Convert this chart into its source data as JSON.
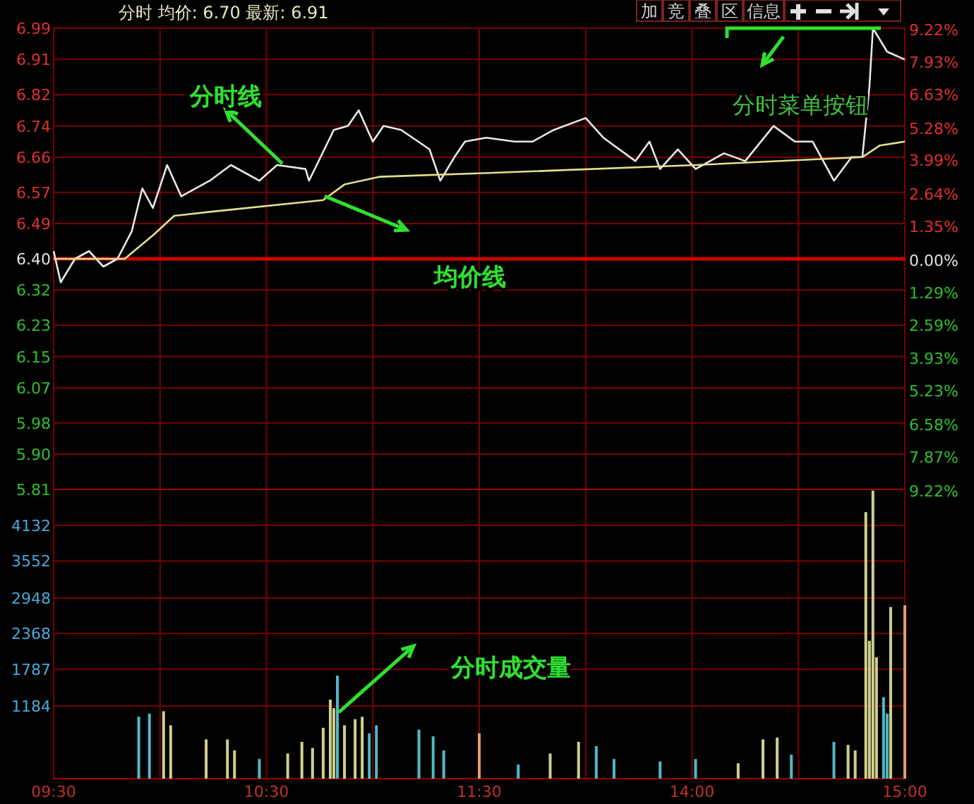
{
  "chart_data": [
    {
      "type": "line",
      "title": "分时 均价: 6.70 最新: 6.91",
      "categories": [
        null,
        null,
        null,
        null,
        null,
        null,
        null,
        null,
        null,
        null,
        null,
        null,
        null,
        null,
        null,
        null,
        null,
        null,
        null,
        null,
        null,
        null,
        null,
        null,
        null,
        null,
        null,
        null,
        null,
        null,
        null,
        null,
        null,
        null,
        null,
        null,
        null,
        null,
        null,
        null,
        null,
        null,
        null,
        null,
        null,
        null,
        null,
        null,
        null,
        null,
        null,
        null,
        null,
        null,
        null,
        null,
        null,
        null,
        null,
        null,
        null,
        null,
        null,
        null,
        null,
        null,
        null,
        null,
        null,
        null,
        null,
        null,
        null,
        null,
        null,
        null,
        null,
        null,
        null,
        null,
        null,
        null,
        null,
        null,
        null,
        null,
        null,
        null,
        null,
        null,
        null,
        null,
        null,
        null,
        null,
        null,
        null,
        null,
        null,
        null,
        null,
        null,
        null,
        null,
        null,
        null,
        null,
        null,
        null,
        null,
        null,
        null,
        null,
        null,
        null,
        null,
        null,
        null,
        null,
        null,
        null,
        null,
        null,
        null,
        null,
        null,
        null,
        null,
        null,
        null,
        null,
        null,
        null,
        null,
        null,
        null,
        null,
        null,
        null,
        null,
        null,
        null,
        null,
        null,
        null,
        null,
        null,
        null,
        null,
        null,
        null,
        null,
        null,
        null,
        null,
        null,
        null,
        null,
        null,
        null,
        null,
        null,
        null,
        null,
        null,
        null,
        null,
        null,
        null,
        null,
        null,
        null,
        null,
        null,
        null,
        null,
        null,
        null,
        null,
        null,
        null,
        null,
        null,
        null,
        null,
        null,
        null,
        null,
        null,
        null,
        null,
        null,
        null,
        null,
        null,
        null,
        null,
        null,
        null,
        null,
        null,
        null,
        null,
        null,
        null,
        null,
        null,
        null,
        null,
        null,
        null,
        null,
        null,
        null,
        null,
        null,
        null,
        null,
        null,
        null,
        null,
        null,
        null,
        null,
        null,
        null,
        null,
        null,
        null,
        null,
        null,
        null,
        null,
        null,
        null,
        null,
        null,
        null,
        null,
        null,
        null
      ],
      "series": [
        {
          "color": "#e8e8e8",
          "values": [
            6.42,
            null,
            6.34,
            null,
            null,
            null,
            6.4,
            null,
            null,
            null,
            6.42,
            null,
            null,
            null,
            6.38,
            null,
            null,
            null,
            6.4,
            null,
            null,
            null,
            6.47,
            null,
            null,
            6.58,
            null,
            null,
            6.53,
            null,
            null,
            null,
            6.64,
            null,
            null,
            null,
            6.56,
            null,
            null,
            null,
            null,
            null,
            null,
            null,
            6.6,
            null,
            null,
            null,
            null,
            null,
            6.64,
            null,
            null,
            null,
            null,
            null,
            null,
            null,
            6.6,
            null,
            null,
            null,
            null,
            6.64,
            null,
            null,
            null,
            null,
            null,
            null,
            null,
            6.63,
            6.6,
            null,
            null,
            null,
            null,
            null,
            null,
            6.73,
            null,
            null,
            null,
            6.74,
            null,
            null,
            6.78,
            null,
            null,
            null,
            6.7,
            null,
            null,
            6.74,
            null,
            null,
            null,
            null,
            6.73,
            null,
            null,
            null,
            null,
            null,
            null,
            null,
            6.68,
            null,
            null,
            6.6,
            null,
            null,
            null,
            6.66,
            null,
            null,
            6.7,
            null,
            null,
            null,
            null,
            null,
            6.71,
            null,
            null,
            null,
            null,
            null,
            null,
            null,
            6.7,
            null,
            null,
            null,
            null,
            6.7,
            null,
            null,
            null,
            null,
            null,
            6.73,
            null,
            null,
            null,
            null,
            null,
            null,
            null,
            null,
            6.76,
            null,
            null,
            null,
            null,
            6.71,
            null,
            null,
            null,
            null,
            null,
            null,
            null,
            null,
            6.65,
            null,
            null,
            null,
            6.7,
            null,
            null,
            6.63,
            null,
            null,
            null,
            null,
            6.68,
            null,
            null,
            null,
            null,
            6.63,
            null,
            null,
            null,
            null,
            null,
            null,
            null,
            6.67,
            null,
            null,
            null,
            null,
            null,
            6.65,
            null,
            null,
            null,
            null,
            null,
            null,
            null,
            6.74,
            null,
            null,
            null,
            null,
            null,
            6.7,
            null,
            null,
            null,
            null,
            6.7,
            null,
            null,
            null,
            null,
            null,
            6.6,
            null,
            null,
            null,
            null,
            6.66,
            null,
            null,
            6.66,
            null,
            6.84,
            6.99,
            null,
            null,
            null,
            6.93,
            null,
            null,
            null,
            null,
            6.91
          ]
        },
        {
          "color": "#e0e090",
          "values": [
            6.4,
            null,
            null,
            null,
            null,
            null,
            null,
            null,
            null,
            null,
            null,
            null,
            null,
            null,
            null,
            null,
            null,
            null,
            null,
            null,
            6.4,
            null,
            null,
            null,
            null,
            null,
            null,
            null,
            6.46,
            null,
            null,
            null,
            null,
            null,
            6.51,
            null,
            null,
            null,
            null,
            null,
            null,
            null,
            null,
            null,
            6.52,
            null,
            null,
            null,
            null,
            null,
            null,
            null,
            null,
            null,
            null,
            null,
            null,
            null,
            null,
            null,
            null,
            null,
            null,
            null,
            null,
            null,
            null,
            null,
            null,
            null,
            null,
            null,
            null,
            null,
            null,
            null,
            6.55,
            null,
            null,
            null,
            null,
            null,
            6.59,
            null,
            null,
            null,
            null,
            null,
            null,
            null,
            null,
            null,
            6.61,
            null,
            null,
            null,
            null,
            null,
            null,
            null,
            null,
            null,
            null,
            null,
            null,
            null,
            null,
            null,
            null,
            null,
            null,
            null,
            null,
            null,
            null,
            null,
            null,
            null,
            null,
            null,
            null,
            null,
            null,
            null,
            6.62,
            null,
            null,
            null,
            null,
            null,
            null,
            null,
            null,
            null,
            null,
            null,
            null,
            null,
            null,
            null,
            null,
            null,
            null,
            null,
            null,
            null,
            null,
            null,
            null,
            null,
            null,
            null,
            null,
            null,
            null,
            null,
            null,
            null,
            null,
            null,
            null,
            null,
            null,
            null,
            null,
            null,
            null,
            null,
            null,
            null,
            null,
            null,
            null,
            null,
            null,
            null,
            null,
            null,
            null,
            null,
            null,
            6.64,
            null,
            null,
            null,
            null,
            null,
            null,
            null,
            null,
            null,
            null,
            null,
            null,
            null,
            null,
            null,
            null,
            null,
            null,
            null,
            null,
            null,
            null,
            null,
            null,
            null,
            null,
            null,
            null,
            null,
            null,
            null,
            null,
            null,
            null,
            null,
            null,
            null,
            null,
            null,
            null,
            null,
            null,
            null,
            null,
            null,
            null,
            6.66,
            null,
            null,
            null,
            null,
            6.69,
            null,
            null,
            null,
            null,
            null,
            null,
            6.7
          ]
        }
      ],
      "ylim": [
        5.81,
        6.99
      ],
      "yticks": [
        {
          "value": 6.99,
          "label": "6.99"
        },
        {
          "value": 6.91,
          "label": "6.91"
        },
        {
          "value": 6.82,
          "label": "6.82"
        },
        {
          "value": 6.74,
          "label": "6.74"
        },
        {
          "value": 6.66,
          "label": "6.66"
        },
        {
          "value": 6.57,
          "label": "6.57"
        },
        {
          "value": 6.49,
          "label": "6.49"
        },
        {
          "value": 6.4,
          "label": "6.40"
        },
        {
          "value": 6.32,
          "label": "6.32"
        },
        {
          "value": 6.23,
          "label": "6.23"
        },
        {
          "value": 6.15,
          "label": "6.15"
        },
        {
          "value": 6.07,
          "label": "6.07"
        },
        {
          "value": 5.98,
          "label": "5.98"
        },
        {
          "value": 5.9,
          "label": "5.90"
        },
        {
          "value": 5.81,
          "label": "5.81"
        }
      ],
      "y2lim": [
        -9.22,
        9.22
      ],
      "y2ticks": [
        {
          "value": 9.22,
          "label": "9.22%"
        },
        {
          "value": 7.93,
          "label": "7.93%"
        },
        {
          "value": 6.63,
          "label": "6.63%"
        },
        {
          "value": 5.28,
          "label": "5.28%"
        },
        {
          "value": 3.99,
          "label": "3.99%"
        },
        {
          "value": 2.64,
          "label": "2.64%"
        },
        {
          "value": 1.35,
          "label": "1.35%"
        },
        {
          "value": 0,
          "label": "0.00%"
        },
        {
          "value": -1.29,
          "label": "1.29%"
        },
        {
          "value": -2.59,
          "label": "2.59%"
        },
        {
          "value": -3.93,
          "label": "3.93%"
        },
        {
          "value": -5.23,
          "label": "5.23%"
        },
        {
          "value": -6.58,
          "label": "6.58%"
        },
        {
          "value": -7.87,
          "label": "7.87%"
        },
        {
          "value": -9.22,
          "label": "9.22%"
        }
      ],
      "ref_lines": [
        {
          "axis": "y",
          "value": 6.4,
          "color": "#d00000"
        }
      ],
      "grid": true,
      "tick_labels": "y",
      "annotations": [
        "分时线",
        "均价线",
        "分时菜单按钮",
        "加",
        "竞",
        "叠",
        "区",
        "信息"
      ]
    },
    {
      "type": "bar",
      "categories": [
        "09:30",
        null,
        null,
        null,
        null,
        null,
        null,
        null,
        null,
        null,
        null,
        null,
        null,
        null,
        null,
        null,
        null,
        null,
        null,
        null,
        null,
        null,
        null,
        null,
        null,
        null,
        null,
        null,
        null,
        null,
        null,
        null,
        null,
        null,
        null,
        null,
        null,
        null,
        null,
        null,
        null,
        null,
        null,
        null,
        null,
        null,
        null,
        null,
        null,
        null,
        null,
        null,
        null,
        null,
        null,
        null,
        null,
        null,
        null,
        null,
        "10:30",
        null,
        null,
        null,
        null,
        null,
        null,
        null,
        null,
        null,
        null,
        null,
        null,
        null,
        null,
        null,
        null,
        null,
        null,
        null,
        null,
        null,
        null,
        null,
        null,
        null,
        null,
        null,
        null,
        null,
        null,
        null,
        null,
        null,
        null,
        null,
        null,
        null,
        null,
        null,
        null,
        null,
        null,
        null,
        null,
        null,
        null,
        null,
        null,
        null,
        null,
        null,
        null,
        null,
        null,
        null,
        null,
        null,
        null,
        null,
        "11:30",
        null,
        null,
        null,
        null,
        null,
        null,
        null,
        null,
        null,
        null,
        null,
        null,
        null,
        null,
        null,
        null,
        null,
        null,
        null,
        null,
        null,
        null,
        null,
        null,
        null,
        null,
        null,
        null,
        null,
        null,
        null,
        null,
        null,
        null,
        null,
        null,
        null,
        null,
        null,
        null,
        null,
        null,
        null,
        null,
        null,
        null,
        null,
        null,
        null,
        null,
        null,
        null,
        null,
        null,
        null,
        null,
        null,
        null,
        null,
        "14:00",
        null,
        null,
        null,
        null,
        null,
        null,
        null,
        null,
        null,
        null,
        null,
        null,
        null,
        null,
        null,
        null,
        null,
        null,
        null,
        null,
        null,
        null,
        null,
        null,
        null,
        null,
        null,
        null,
        null,
        null,
        null,
        null,
        null,
        null,
        null,
        null,
        null,
        null,
        null,
        null,
        null,
        null,
        null,
        null,
        null,
        null,
        null,
        null,
        null,
        null,
        null,
        null,
        null,
        null,
        null,
        null,
        null,
        null,
        null,
        "15:00"
      ],
      "values": [
        null,
        null,
        null,
        null,
        null,
        null,
        null,
        null,
        null,
        null,
        null,
        null,
        null,
        null,
        null,
        null,
        null,
        null,
        null,
        null,
        null,
        null,
        null,
        null,
        1010,
        null,
        null,
        1060,
        null,
        null,
        null,
        1100,
        null,
        870,
        null,
        null,
        null,
        null,
        null,
        null,
        null,
        null,
        null,
        640,
        null,
        null,
        null,
        null,
        null,
        640,
        null,
        460,
        null,
        null,
        null,
        null,
        null,
        null,
        320,
        null,
        null,
        null,
        null,
        null,
        null,
        null,
        410,
        null,
        null,
        null,
        600,
        null,
        null,
        500,
        null,
        null,
        830,
        null,
        1290,
        1150,
        1680,
        null,
        870,
        null,
        null,
        970,
        null,
        1010,
        null,
        740,
        null,
        870,
        null,
        null,
        null,
        null,
        null,
        null,
        null,
        null,
        null,
        null,
        null,
        800,
        null,
        null,
        null,
        690,
        null,
        null,
        460,
        null,
        null,
        null,
        null,
        null,
        null,
        null,
        null,
        null,
        740,
        null,
        null,
        null,
        null,
        null,
        null,
        null,
        null,
        null,
        null,
        230,
        null,
        null,
        null,
        null,
        null,
        null,
        null,
        null,
        410,
        null,
        null,
        null,
        null,
        null,
        null,
        null,
        600,
        null,
        null,
        null,
        null,
        530,
        null,
        null,
        null,
        null,
        320,
        null,
        null,
        null,
        null,
        null,
        null,
        null,
        null,
        null,
        null,
        null,
        null,
        280,
        null,
        null,
        null,
        null,
        null,
        null,
        null,
        null,
        null,
        320,
        null,
        null,
        null,
        null,
        null,
        null,
        null,
        null,
        null,
        null,
        null,
        250,
        null,
        null,
        null,
        null,
        null,
        null,
        640,
        null,
        null,
        null,
        670,
        null,
        null,
        null,
        390,
        null,
        null,
        null,
        null,
        null,
        null,
        null,
        null,
        null,
        null,
        null,
        600,
        null,
        null,
        null,
        550,
        null,
        460,
        null,
        null,
        4350,
        2250,
        4700,
        1980,
        null,
        1330,
        1060,
        2800,
        null,
        null,
        null,
        2830
      ],
      "colors": [
        null,
        null,
        null,
        null,
        null,
        null,
        null,
        null,
        null,
        null,
        null,
        null,
        null,
        null,
        null,
        null,
        null,
        null,
        null,
        null,
        null,
        null,
        null,
        null,
        "#50b8c8",
        null,
        null,
        "#50b8c8",
        null,
        null,
        null,
        "#d0d08c",
        null,
        "#d0d08c",
        null,
        null,
        null,
        null,
        null,
        null,
        null,
        null,
        null,
        "#d0d08c",
        null,
        null,
        null,
        null,
        null,
        "#d0d08c",
        null,
        "#d0d08c",
        null,
        null,
        null,
        null,
        null,
        null,
        "#50b8c8",
        null,
        null,
        null,
        null,
        null,
        null,
        null,
        "#d0d08c",
        null,
        null,
        null,
        "#d0d08c",
        null,
        null,
        "#d0d08c",
        null,
        null,
        "#d0d08c",
        null,
        "#d0d08c",
        "#d0d08c",
        "#50b8c8",
        null,
        "#d0d08c",
        null,
        null,
        "#d0d08c",
        null,
        "#d0d08c",
        null,
        "#50b8c8",
        null,
        "#50b8c8",
        null,
        null,
        null,
        null,
        null,
        null,
        null,
        null,
        null,
        null,
        null,
        "#50b8c8",
        null,
        null,
        null,
        "#50b8c8",
        null,
        null,
        "#50b8c8",
        null,
        null,
        null,
        null,
        null,
        null,
        null,
        null,
        null,
        "#e0a070",
        null,
        null,
        null,
        null,
        null,
        null,
        null,
        null,
        null,
        null,
        "#50b8c8",
        null,
        null,
        null,
        null,
        null,
        null,
        null,
        null,
        "#d0d08c",
        null,
        null,
        null,
        null,
        null,
        null,
        null,
        "#d0d08c",
        null,
        null,
        null,
        null,
        "#50b8c8",
        null,
        null,
        null,
        null,
        "#50b8c8",
        null,
        null,
        null,
        null,
        null,
        null,
        null,
        null,
        null,
        null,
        null,
        null,
        "#50b8c8",
        null,
        null,
        null,
        null,
        null,
        null,
        null,
        null,
        null,
        "#50b8c8",
        null,
        null,
        null,
        null,
        null,
        null,
        null,
        null,
        null,
        null,
        null,
        "#d0d08c",
        null,
        null,
        null,
        null,
        null,
        null,
        "#d0d08c",
        null,
        null,
        null,
        "#d0d08c",
        null,
        null,
        null,
        "#50b8c8",
        null,
        null,
        null,
        null,
        null,
        null,
        null,
        null,
        null,
        null,
        null,
        "#50b8c8",
        null,
        null,
        null,
        "#d0d08c",
        null,
        "#d0d08c",
        null,
        null,
        "#d0d08c",
        "#d0d08c",
        "#d0d08c",
        "#d0d08c",
        null,
        "#50b8c8",
        "#50b8c8",
        "#d0d08c",
        null,
        null,
        null,
        "#e0a070"
      ],
      "ylim": [
        0,
        4720
      ],
      "yticks": [
        1184,
        1787,
        2368,
        2948,
        3552,
        4132
      ],
      "grid": true,
      "annotations": [
        "分时成交量"
      ]
    }
  ]
}
